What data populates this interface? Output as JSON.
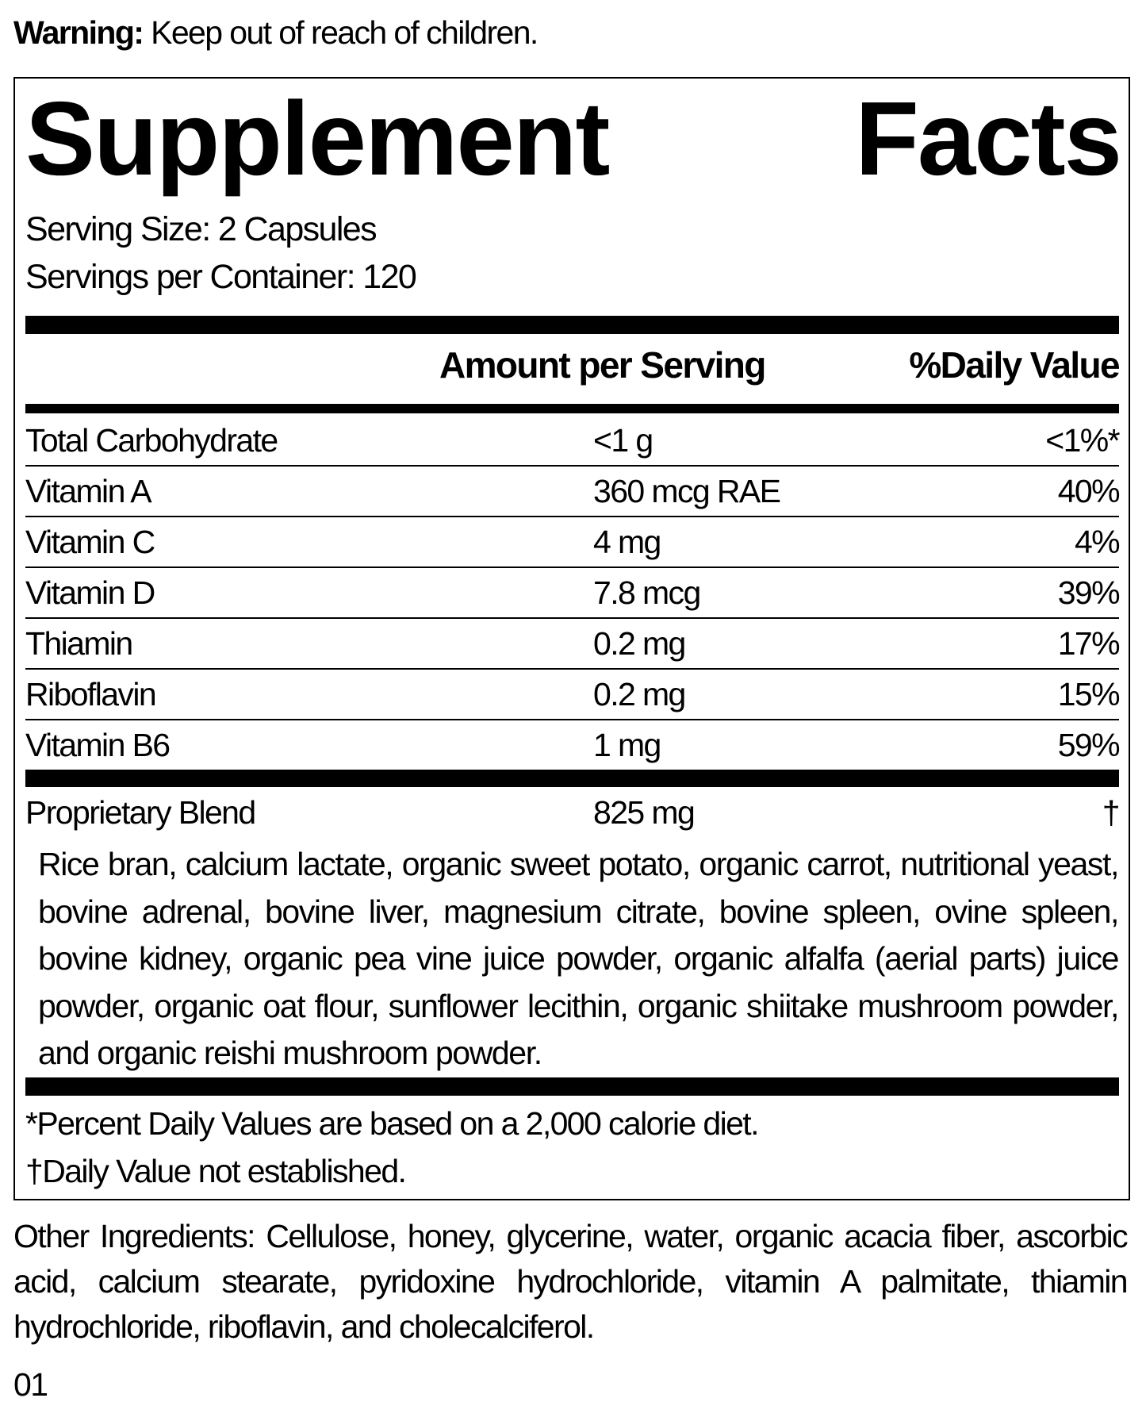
{
  "warning": {
    "label": "Warning:",
    "text": " Keep out of reach of children."
  },
  "title": {
    "word1": "Supplement",
    "word2": "Facts"
  },
  "serving_size": "Serving Size: 2 Capsules",
  "servings_per_container": "Servings per Container: 120",
  "header": {
    "amount": "Amount per Serving",
    "dv": "%Daily Value"
  },
  "rows": [
    {
      "name": "Total Carbohydrate",
      "amount": "<1 g",
      "dv": "<1%*"
    },
    {
      "name": "Vitamin A",
      "amount": "360 mcg RAE",
      "dv": "40%"
    },
    {
      "name": "Vitamin C",
      "amount": "4 mg",
      "dv": "4%"
    },
    {
      "name": "Vitamin D",
      "amount": "7.8 mcg",
      "dv": "39%"
    },
    {
      "name": "Thiamin",
      "amount": "0.2 mg",
      "dv": "17%"
    },
    {
      "name": "Riboflavin",
      "amount": "0.2 mg",
      "dv": "15%"
    },
    {
      "name": "Vitamin B6",
      "amount": "1 mg",
      "dv": "59%"
    }
  ],
  "blend": {
    "name": "Proprietary Blend",
    "amount": "825 mg",
    "dv": "†",
    "ingredients": "Rice bran, calcium lactate, organic sweet potato, organic carrot, nutritional yeast, bovine adrenal, bovine liver, magnesium citrate, bovine spleen, ovine spleen, bovine kidney, organic pea vine juice powder, organic alfalfa (aerial parts) juice powder, organic oat flour, sunflower lecithin, organic shiitake mushroom powder, and organic reishi mushroom powder."
  },
  "footnotes": [
    "*Percent Daily Values are based on a 2,000 calorie diet.",
    "†Daily Value not established."
  ],
  "other_ingredients": "Other Ingredients: Cellulose, honey, glycerine, water, organic acacia fiber, ascorbic acid, calcium stearate, pyridoxine hydrochloride, vitamin A palmitate, thiamin hydrochloride, riboflavin, and cholecalciferol.",
  "code": "01"
}
